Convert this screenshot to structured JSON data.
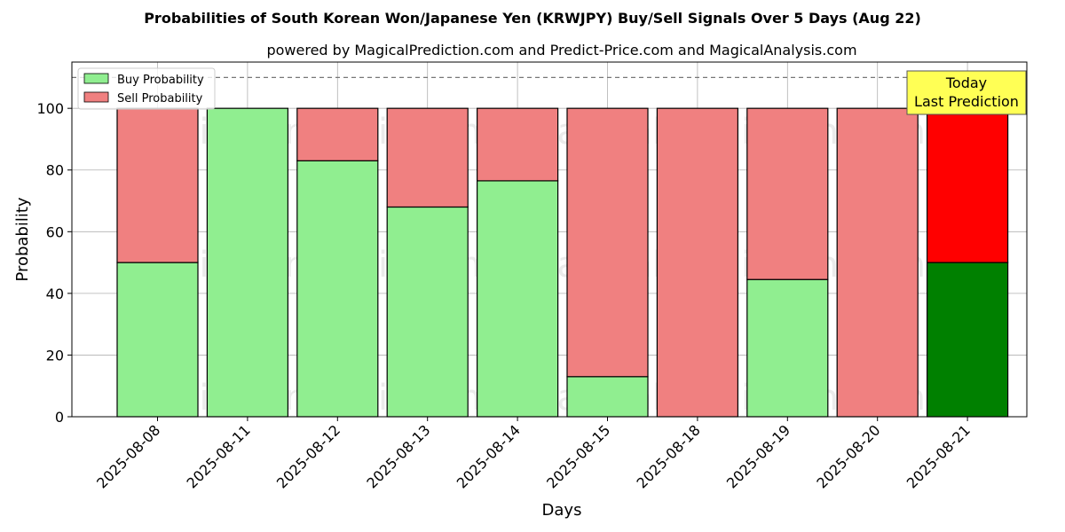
{
  "chart_data": {
    "type": "bar",
    "stacked": true,
    "title": "Probabilities of South Korean Won/Japanese Yen (KRWJPY) Buy/Sell Signals Over 5 Days (Aug 22)",
    "subtitle": "powered by MagicalPrediction.com and Predict-Price.com and MagicalAnalysis.com",
    "xlabel": "Days",
    "ylabel": "Probability",
    "ylim": [
      0,
      115
    ],
    "yticks": [
      0,
      20,
      40,
      60,
      80,
      100
    ],
    "grid": true,
    "legend_position": "top-left",
    "threshold_line": 110,
    "categories": [
      "2025-08-08",
      "2025-08-11",
      "2025-08-12",
      "2025-08-13",
      "2025-08-14",
      "2025-08-15",
      "2025-08-18",
      "2025-08-19",
      "2025-08-20",
      "2025-08-21"
    ],
    "series": [
      {
        "name": "Buy Probability",
        "color": "#90ee90",
        "values": [
          50,
          100,
          83,
          68,
          76.5,
          13,
          0,
          44.5,
          0,
          50
        ]
      },
      {
        "name": "Sell Probability",
        "color": "#f08080",
        "values": [
          50,
          0,
          17,
          32,
          23.5,
          87,
          100,
          55.5,
          100,
          50
        ]
      }
    ],
    "highlight": {
      "index": 9,
      "buy_color": "#008000",
      "sell_color": "#ff0000"
    },
    "annotation": {
      "lines": [
        "Today",
        "Last Prediction"
      ],
      "background": "#ffff55"
    },
    "watermarks": [
      "MagicalAnalysis.com",
      "MagicalPrediction.com"
    ]
  }
}
